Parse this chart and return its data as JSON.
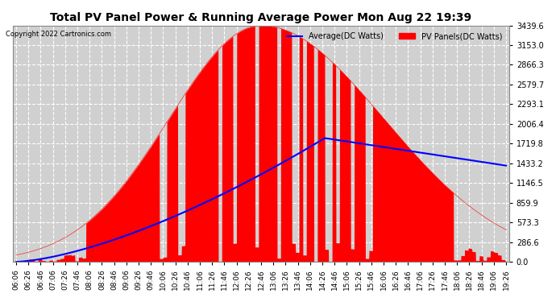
{
  "title": "Total PV Panel Power & Running Average Power Mon Aug 22 19:39",
  "copyright": "Copyright 2022 Cartronics.com",
  "legend_avg": "Average(DC Watts)",
  "legend_pv": "PV Panels(DC Watts)",
  "yticks": [
    0.0,
    286.6,
    573.3,
    859.9,
    1146.5,
    1433.2,
    1719.8,
    2006.4,
    2293.1,
    2579.7,
    2866.3,
    3153.0,
    3439.6
  ],
  "ymax": 3439.6,
  "bg_color": "#ffffff",
  "plot_bg_color": "#d0d0d0",
  "grid_color": "#ffffff",
  "pv_color": "#ff0000",
  "avg_color": "#0000ff",
  "title_color": "#000000",
  "copyright_color": "#000000",
  "xtick_start_hour": 6,
  "xtick_start_min": 6,
  "xtick_end_hour": 19,
  "xtick_end_min": 26,
  "xtick_step_min": 20
}
